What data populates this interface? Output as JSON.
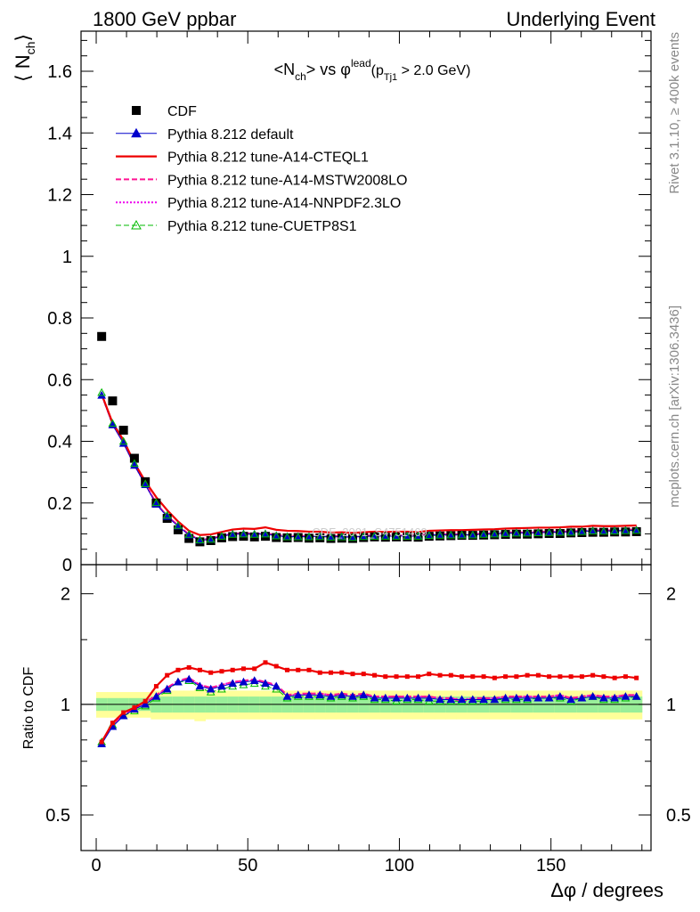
{
  "header": {
    "left": "1800 GeV ppbar",
    "right": "Underlying Event"
  },
  "side_text": {
    "rivet": "Rivet 3.1.10, ≥ 400k events",
    "mcplots": "mcplots.cern.ch [arXiv:1306.3436]"
  },
  "watermark": "CDF_2001_S4751469",
  "colors": {
    "cdf": "#000000",
    "default": "#0000cc",
    "cteql1": "#ee0000",
    "mstw": "#ff1493",
    "nnpdf": "#ee00ee",
    "cuetp8s1": "#00bb00",
    "band_inner": "#99ee99",
    "band_outer": "#ffff99"
  },
  "chart_data": [
    {
      "type": "scatter",
      "panel": "main",
      "title_parts": {
        "a": "<N",
        "a_sub": "ch",
        "b": "> vs φ",
        "b_sup": "lead",
        "c": "(p",
        "c_sub": "Tj1",
        "d": " > 2.0 GeV)"
      },
      "ylabel": {
        "main": "⟨ N",
        "sub": "ch",
        "close": "⟩"
      },
      "xlabel": "",
      "xlim": [
        -5,
        183
      ],
      "ylim": [
        0,
        1.73
      ],
      "yticks": [
        0,
        0.2,
        0.4,
        0.6,
        0.8,
        1,
        1.2,
        1.4,
        1.6
      ],
      "ytick_labels": [
        "0",
        "0.2",
        "0.4",
        "0.6",
        "0.8",
        "1",
        "1.2",
        "1.4",
        "1.6"
      ],
      "x": [
        1.8,
        5.4,
        9.0,
        12.6,
        16.2,
        19.8,
        23.4,
        27.0,
        30.6,
        34.2,
        37.8,
        41.4,
        45.0,
        48.6,
        52.2,
        55.8,
        59.4,
        63.0,
        66.6,
        70.2,
        73.8,
        77.4,
        81.0,
        84.6,
        88.2,
        91.8,
        95.4,
        99.0,
        102.6,
        106.2,
        109.8,
        113.4,
        117.0,
        120.6,
        124.2,
        127.8,
        131.4,
        135.0,
        138.6,
        142.2,
        145.8,
        149.4,
        153.0,
        156.6,
        160.2,
        163.8,
        167.4,
        171.0,
        174.6,
        178.2
      ],
      "legend": [
        {
          "label": "CDF",
          "key": "cdf",
          "marker": "square",
          "line": "none"
        },
        {
          "label": "Pythia 8.212 default",
          "key": "default",
          "marker": "triangle",
          "line": "solid"
        },
        {
          "label": "Pythia 8.212 tune-A14-CTEQL1",
          "key": "cteql1",
          "marker": "none",
          "line": "solid"
        },
        {
          "label": "Pythia 8.212 tune-A14-MSTW2008LO",
          "key": "mstw",
          "marker": "none",
          "line": "dashed"
        },
        {
          "label": "Pythia 8.212 tune-A14-NNPDF2.3LO",
          "key": "nnpdf",
          "marker": "none",
          "line": "dotted"
        },
        {
          "label": "Pythia 8.212 tune-CUETP8S1",
          "key": "cuetp8s1",
          "marker": "open-triangle",
          "line": "dashed"
        }
      ],
      "series": [
        {
          "name": "CDF",
          "key": "cdf",
          "values": [
            0.74,
            0.531,
            0.436,
            0.345,
            0.269,
            0.2,
            0.15,
            0.113,
            0.085,
            0.074,
            0.078,
            0.087,
            0.091,
            0.092,
            0.09,
            0.092,
            0.088,
            0.087,
            0.088,
            0.086,
            0.087,
            0.085,
            0.086,
            0.085,
            0.088,
            0.09,
            0.089,
            0.09,
            0.09,
            0.089,
            0.092,
            0.093,
            0.094,
            0.095,
            0.095,
            0.096,
            0.097,
            0.098,
            0.099,
            0.099,
            0.1,
            0.101,
            0.101,
            0.103,
            0.104,
            0.105,
            0.105,
            0.106,
            0.106,
            0.107
          ]
        },
        {
          "name": "Pythia 8.212 default",
          "key": "default",
          "values": [
            0.549,
            0.453,
            0.393,
            0.322,
            0.259,
            0.196,
            0.156,
            0.125,
            0.096,
            0.079,
            0.082,
            0.092,
            0.099,
            0.1,
            0.099,
            0.1,
            0.094,
            0.091,
            0.091,
            0.091,
            0.092,
            0.09,
            0.091,
            0.089,
            0.092,
            0.093,
            0.093,
            0.093,
            0.093,
            0.093,
            0.096,
            0.097,
            0.097,
            0.097,
            0.097,
            0.099,
            0.1,
            0.102,
            0.103,
            0.103,
            0.104,
            0.105,
            0.106,
            0.106,
            0.108,
            0.11,
            0.109,
            0.11,
            0.111,
            0.112
          ]
        },
        {
          "name": "Pythia 8.212 tune-A14-CTEQL1",
          "key": "cteql1",
          "values": [
            0.553,
            0.46,
            0.404,
            0.33,
            0.27,
            0.219,
            0.177,
            0.14,
            0.11,
            0.096,
            0.098,
            0.106,
            0.114,
            0.117,
            0.116,
            0.121,
            0.113,
            0.11,
            0.109,
            0.107,
            0.107,
            0.104,
            0.105,
            0.103,
            0.105,
            0.107,
            0.106,
            0.107,
            0.107,
            0.106,
            0.11,
            0.111,
            0.112,
            0.112,
            0.113,
            0.114,
            0.115,
            0.117,
            0.118,
            0.119,
            0.12,
            0.12,
            0.121,
            0.123,
            0.123,
            0.126,
            0.125,
            0.125,
            0.126,
            0.127
          ]
        },
        {
          "name": "Pythia 8.212 tune-A14-MSTW2008LO",
          "key": "mstw",
          "values": [
            0.551,
            0.457,
            0.397,
            0.325,
            0.262,
            0.199,
            0.158,
            0.128,
            0.098,
            0.082,
            0.084,
            0.094,
            0.101,
            0.102,
            0.101,
            0.102,
            0.096,
            0.093,
            0.093,
            0.093,
            0.094,
            0.092,
            0.093,
            0.091,
            0.094,
            0.095,
            0.095,
            0.095,
            0.095,
            0.095,
            0.098,
            0.099,
            0.099,
            0.099,
            0.099,
            0.101,
            0.102,
            0.104,
            0.105,
            0.105,
            0.106,
            0.107,
            0.108,
            0.108,
            0.11,
            0.112,
            0.111,
            0.112,
            0.113,
            0.114
          ]
        },
        {
          "name": "Pythia 8.212 tune-A14-NNPDF2.3LO",
          "key": "nnpdf",
          "values": [
            0.552,
            0.456,
            0.396,
            0.324,
            0.261,
            0.198,
            0.157,
            0.127,
            0.097,
            0.081,
            0.083,
            0.093,
            0.1,
            0.101,
            0.1,
            0.101,
            0.095,
            0.092,
            0.092,
            0.092,
            0.093,
            0.091,
            0.092,
            0.09,
            0.093,
            0.094,
            0.094,
            0.094,
            0.094,
            0.094,
            0.097,
            0.098,
            0.098,
            0.098,
            0.098,
            0.1,
            0.101,
            0.103,
            0.104,
            0.104,
            0.105,
            0.106,
            0.107,
            0.107,
            0.109,
            0.111,
            0.11,
            0.111,
            0.112,
            0.113
          ]
        },
        {
          "name": "Pythia 8.212 tune-CUETP8S1",
          "key": "cuetp8s1",
          "values": [
            0.558,
            0.458,
            0.4,
            0.328,
            0.262,
            0.201,
            0.16,
            0.127,
            0.098,
            0.08,
            0.082,
            0.092,
            0.098,
            0.099,
            0.098,
            0.099,
            0.093,
            0.09,
            0.09,
            0.09,
            0.091,
            0.089,
            0.09,
            0.088,
            0.091,
            0.092,
            0.092,
            0.092,
            0.092,
            0.092,
            0.094,
            0.095,
            0.096,
            0.096,
            0.096,
            0.098,
            0.099,
            0.101,
            0.102,
            0.102,
            0.103,
            0.104,
            0.105,
            0.105,
            0.107,
            0.109,
            0.108,
            0.109,
            0.11,
            0.111
          ]
        }
      ]
    },
    {
      "type": "line",
      "panel": "ratio",
      "ylabel": "Ratio to CDF",
      "xlabel": "Δφ / degrees",
      "xlim": [
        -5,
        183
      ],
      "ylim": [
        0.4,
        2.4
      ],
      "log_y": true,
      "yticks": [
        0.5,
        1,
        2
      ],
      "ytick_labels": [
        "0.5",
        "1",
        "2"
      ],
      "xticks": [
        0,
        50,
        100,
        150
      ],
      "xtick_labels": [
        "0",
        "50",
        "100",
        "150"
      ],
      "x": [
        1.8,
        5.4,
        9.0,
        12.6,
        16.2,
        19.8,
        23.4,
        27.0,
        30.6,
        34.2,
        37.8,
        41.4,
        45.0,
        48.6,
        52.2,
        55.8,
        59.4,
        63.0,
        66.6,
        70.2,
        73.8,
        77.4,
        81.0,
        84.6,
        88.2,
        91.8,
        95.4,
        99.0,
        102.6,
        106.2,
        109.8,
        113.4,
        117.0,
        120.6,
        124.2,
        127.8,
        131.4,
        135.0,
        138.6,
        142.2,
        145.8,
        149.4,
        153.0,
        156.6,
        160.2,
        163.8,
        167.4,
        171.0,
        174.6,
        178.2
      ],
      "band_inner": [
        0.96,
        0.96,
        0.96,
        0.96,
        0.96,
        0.95,
        0.95,
        0.95,
        0.95,
        0.95,
        0.95,
        0.95,
        0.95,
        0.95,
        0.95,
        0.95,
        0.95,
        0.95,
        0.95,
        0.95,
        0.95,
        0.95,
        0.95,
        0.95,
        0.95,
        0.95,
        0.95,
        0.95,
        0.95,
        0.95,
        0.95,
        0.95,
        0.95,
        0.95,
        0.95,
        0.95,
        0.95,
        0.95,
        0.95,
        0.95,
        0.95,
        0.95,
        0.95,
        0.95,
        0.95,
        0.95,
        0.95,
        0.95,
        0.95,
        0.95
      ],
      "band_inner_hi": [
        1.04,
        1.04,
        1.04,
        1.04,
        1.04,
        1.05,
        1.05,
        1.05,
        1.05,
        1.05,
        1.05,
        1.05,
        1.05,
        1.05,
        1.05,
        1.05,
        1.05,
        1.05,
        1.05,
        1.05,
        1.05,
        1.05,
        1.05,
        1.05,
        1.05,
        1.05,
        1.05,
        1.05,
        1.05,
        1.05,
        1.05,
        1.05,
        1.05,
        1.05,
        1.05,
        1.05,
        1.05,
        1.05,
        1.05,
        1.05,
        1.05,
        1.05,
        1.05,
        1.05,
        1.05,
        1.05,
        1.05,
        1.05,
        1.05,
        1.05
      ],
      "band_outer_lo": [
        0.92,
        0.92,
        0.92,
        0.92,
        0.92,
        0.91,
        0.91,
        0.91,
        0.91,
        0.9,
        0.91,
        0.91,
        0.91,
        0.91,
        0.91,
        0.91,
        0.91,
        0.91,
        0.91,
        0.91,
        0.91,
        0.91,
        0.91,
        0.91,
        0.91,
        0.91,
        0.91,
        0.91,
        0.91,
        0.91,
        0.91,
        0.91,
        0.91,
        0.91,
        0.91,
        0.91,
        0.91,
        0.91,
        0.91,
        0.91,
        0.91,
        0.91,
        0.91,
        0.91,
        0.91,
        0.91,
        0.91,
        0.91,
        0.91,
        0.91
      ],
      "band_outer_hi": [
        1.08,
        1.08,
        1.08,
        1.08,
        1.08,
        1.09,
        1.09,
        1.09,
        1.09,
        1.1,
        1.09,
        1.09,
        1.09,
        1.09,
        1.09,
        1.09,
        1.09,
        1.09,
        1.09,
        1.09,
        1.09,
        1.09,
        1.09,
        1.09,
        1.09,
        1.09,
        1.09,
        1.09,
        1.09,
        1.09,
        1.09,
        1.09,
        1.09,
        1.09,
        1.09,
        1.09,
        1.09,
        1.09,
        1.09,
        1.09,
        1.09,
        1.09,
        1.09,
        1.09,
        1.09,
        1.09,
        1.09,
        1.09,
        1.09,
        1.09
      ],
      "series": [
        {
          "name": "Pythia 8.212 default",
          "key": "default",
          "values": [
            0.78,
            0.87,
            0.93,
            0.97,
            1.0,
            1.05,
            1.1,
            1.15,
            1.17,
            1.12,
            1.1,
            1.12,
            1.14,
            1.15,
            1.16,
            1.14,
            1.12,
            1.05,
            1.06,
            1.06,
            1.06,
            1.05,
            1.06,
            1.05,
            1.06,
            1.04,
            1.04,
            1.04,
            1.04,
            1.04,
            1.04,
            1.03,
            1.03,
            1.03,
            1.03,
            1.03,
            1.03,
            1.04,
            1.04,
            1.04,
            1.04,
            1.04,
            1.05,
            1.03,
            1.04,
            1.05,
            1.04,
            1.04,
            1.05,
            1.05
          ]
        },
        {
          "name": "Pythia 8.212 tune-A14-CTEQL1",
          "key": "cteql1",
          "values": [
            0.79,
            0.89,
            0.95,
            0.98,
            1.02,
            1.12,
            1.2,
            1.24,
            1.26,
            1.24,
            1.22,
            1.23,
            1.24,
            1.25,
            1.25,
            1.3,
            1.27,
            1.24,
            1.24,
            1.24,
            1.22,
            1.22,
            1.22,
            1.21,
            1.21,
            1.2,
            1.19,
            1.19,
            1.19,
            1.19,
            1.21,
            1.2,
            1.2,
            1.19,
            1.19,
            1.19,
            1.18,
            1.19,
            1.19,
            1.2,
            1.2,
            1.19,
            1.19,
            1.19,
            1.19,
            1.2,
            1.19,
            1.18,
            1.19,
            1.18
          ]
        },
        {
          "name": "Pythia 8.212 tune-A14-MSTW2008LO",
          "key": "mstw",
          "values": [
            0.79,
            0.88,
            0.94,
            0.97,
            1.01,
            1.06,
            1.11,
            1.16,
            1.18,
            1.13,
            1.11,
            1.13,
            1.15,
            1.16,
            1.17,
            1.15,
            1.13,
            1.06,
            1.07,
            1.07,
            1.07,
            1.06,
            1.07,
            1.06,
            1.07,
            1.05,
            1.05,
            1.05,
            1.05,
            1.05,
            1.05,
            1.04,
            1.04,
            1.02,
            1.04,
            1.04,
            1.04,
            1.05,
            1.05,
            1.05,
            1.05,
            1.05,
            1.06,
            1.04,
            1.05,
            1.06,
            1.05,
            1.05,
            1.06,
            1.06
          ]
        },
        {
          "name": "Pythia 8.212 tune-A14-NNPDF2.3LO",
          "key": "nnpdf",
          "values": [
            0.79,
            0.88,
            0.94,
            0.97,
            1.01,
            1.06,
            1.1,
            1.16,
            1.17,
            1.13,
            1.11,
            1.13,
            1.15,
            1.16,
            1.16,
            1.15,
            1.12,
            1.06,
            1.06,
            1.07,
            1.07,
            1.06,
            1.06,
            1.05,
            1.06,
            1.05,
            1.05,
            1.05,
            1.05,
            1.05,
            1.05,
            1.04,
            1.04,
            1.03,
            1.04,
            1.04,
            1.04,
            1.05,
            1.05,
            1.05,
            1.05,
            1.05,
            1.06,
            1.04,
            1.05,
            1.06,
            1.05,
            1.05,
            1.06,
            1.06
          ]
        },
        {
          "name": "Pythia 8.212 tune-CUETP8S1",
          "key": "cuetp8s1",
          "values": [
            0.79,
            0.88,
            0.93,
            0.96,
            0.99,
            1.04,
            1.09,
            1.15,
            1.16,
            1.11,
            1.08,
            1.1,
            1.12,
            1.13,
            1.14,
            1.12,
            1.1,
            1.04,
            1.05,
            1.05,
            1.05,
            1.04,
            1.05,
            1.04,
            1.05,
            1.03,
            1.03,
            1.02,
            1.03,
            1.03,
            1.02,
            1.02,
            1.02,
            1.02,
            1.02,
            1.02,
            1.03,
            1.03,
            1.03,
            1.03,
            1.04,
            1.04,
            1.04,
            1.02,
            1.04,
            1.05,
            1.03,
            1.03,
            1.04,
            1.05
          ]
        }
      ]
    }
  ]
}
